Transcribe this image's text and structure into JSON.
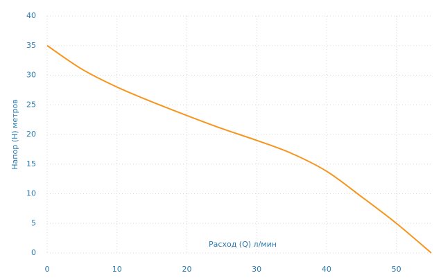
{
  "chart_data": {
    "type": "line",
    "x_label": "Расход (Q) л/мин",
    "y_label": "Напор (H) метров",
    "x": [
      0,
      5,
      10,
      15,
      20,
      25,
      30,
      35,
      40,
      45,
      50,
      55
    ],
    "series": [
      {
        "color": "#f7941d",
        "values": [
          35,
          31,
          28,
          25.5,
          23.2,
          21,
          19,
          16.8,
          13.8,
          9.5,
          5,
          0
        ]
      }
    ],
    "xlim": [
      0,
      55
    ],
    "xticks": [
      0,
      10,
      20,
      30,
      40,
      50
    ],
    "ylim": [
      0,
      40
    ],
    "yticks": [
      0,
      5,
      10,
      15,
      20,
      25,
      30,
      35,
      40
    ],
    "grid": true
  }
}
